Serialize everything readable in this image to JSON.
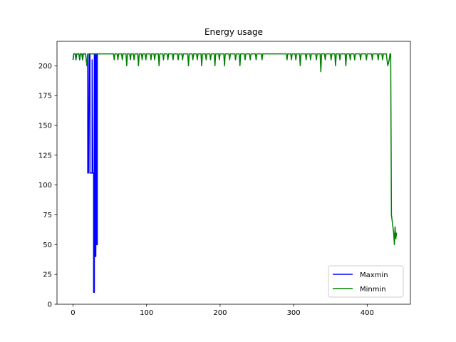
{
  "chart_data": {
    "type": "line",
    "title": "Energy usage",
    "xlabel": "",
    "ylabel": "",
    "xlim": [
      -21.8,
      458.8
    ],
    "ylim": [
      0,
      220.5
    ],
    "xticks": [
      0,
      100,
      200,
      300,
      400
    ],
    "yticks": [
      0,
      25,
      50,
      75,
      100,
      125,
      150,
      175,
      200
    ],
    "grid": false,
    "legend_position": "lower right",
    "series": [
      {
        "name": "Maxmin",
        "color": "#0000ff",
        "points": [
          [
            0,
            205
          ],
          [
            1,
            210
          ],
          [
            3,
            210
          ],
          [
            4,
            205
          ],
          [
            5,
            210
          ],
          [
            8,
            210
          ],
          [
            9,
            205
          ],
          [
            10,
            210
          ],
          [
            12,
            210
          ],
          [
            13,
            205
          ],
          [
            14,
            210
          ],
          [
            17,
            210
          ],
          [
            18,
            205
          ],
          [
            19,
            200
          ],
          [
            20,
            210
          ],
          [
            20,
            110
          ],
          [
            21,
            110
          ],
          [
            22,
            210
          ],
          [
            23,
            210
          ],
          [
            23,
            110
          ],
          [
            24,
            110
          ],
          [
            26,
            110
          ],
          [
            26,
            205
          ],
          [
            27,
            110
          ],
          [
            28,
            110
          ],
          [
            28,
            10
          ],
          [
            29,
            10
          ],
          [
            29,
            210
          ],
          [
            30,
            210
          ],
          [
            30,
            40
          ],
          [
            31,
            40
          ],
          [
            31,
            210
          ],
          [
            32,
            210
          ],
          [
            32,
            50
          ],
          [
            33,
            50
          ],
          [
            33,
            210
          ],
          [
            35,
            210
          ]
        ]
      },
      {
        "name": "Minmin",
        "color": "#008000",
        "points": [
          [
            0,
            205
          ],
          [
            1,
            210
          ],
          [
            3,
            210
          ],
          [
            4,
            205
          ],
          [
            5,
            210
          ],
          [
            8,
            210
          ],
          [
            9,
            205
          ],
          [
            10,
            210
          ],
          [
            12,
            210
          ],
          [
            13,
            205
          ],
          [
            14,
            210
          ],
          [
            17,
            210
          ],
          [
            18,
            205
          ],
          [
            19,
            200
          ],
          [
            20,
            210
          ],
          [
            55,
            210
          ],
          [
            56,
            205
          ],
          [
            57,
            210
          ],
          [
            60,
            210
          ],
          [
            61,
            205
          ],
          [
            62,
            210
          ],
          [
            66,
            210
          ],
          [
            67,
            205
          ],
          [
            68,
            210
          ],
          [
            72,
            210
          ],
          [
            73,
            200
          ],
          [
            74,
            210
          ],
          [
            77,
            210
          ],
          [
            78,
            205
          ],
          [
            79,
            210
          ],
          [
            82,
            210
          ],
          [
            83,
            205
          ],
          [
            84,
            210
          ],
          [
            88,
            210
          ],
          [
            89,
            200
          ],
          [
            90,
            210
          ],
          [
            93,
            210
          ],
          [
            94,
            205
          ],
          [
            95,
            210
          ],
          [
            98,
            210
          ],
          [
            99,
            205
          ],
          [
            100,
            210
          ],
          [
            105,
            210
          ],
          [
            106,
            205
          ],
          [
            107,
            210
          ],
          [
            110,
            210
          ],
          [
            111,
            205
          ],
          [
            112,
            210
          ],
          [
            116,
            210
          ],
          [
            117,
            200
          ],
          [
            118,
            210
          ],
          [
            122,
            210
          ],
          [
            123,
            205
          ],
          [
            124,
            210
          ],
          [
            128,
            210
          ],
          [
            129,
            205
          ],
          [
            130,
            210
          ],
          [
            135,
            210
          ],
          [
            136,
            205
          ],
          [
            137,
            210
          ],
          [
            142,
            210
          ],
          [
            143,
            205
          ],
          [
            144,
            210
          ],
          [
            148,
            210
          ],
          [
            149,
            205
          ],
          [
            150,
            210
          ],
          [
            156,
            210
          ],
          [
            157,
            200
          ],
          [
            158,
            210
          ],
          [
            162,
            210
          ],
          [
            163,
            205
          ],
          [
            164,
            210
          ],
          [
            168,
            210
          ],
          [
            169,
            205
          ],
          [
            170,
            210
          ],
          [
            174,
            210
          ],
          [
            175,
            200
          ],
          [
            176,
            210
          ],
          [
            180,
            210
          ],
          [
            181,
            205
          ],
          [
            182,
            210
          ],
          [
            186,
            210
          ],
          [
            187,
            205
          ],
          [
            188,
            210
          ],
          [
            192,
            210
          ],
          [
            193,
            200
          ],
          [
            194,
            210
          ],
          [
            198,
            210
          ],
          [
            199,
            205
          ],
          [
            200,
            210
          ],
          [
            205,
            210
          ],
          [
            206,
            200
          ],
          [
            207,
            210
          ],
          [
            212,
            210
          ],
          [
            213,
            205
          ],
          [
            214,
            210
          ],
          [
            220,
            210
          ],
          [
            221,
            205
          ],
          [
            222,
            210
          ],
          [
            226,
            210
          ],
          [
            227,
            200
          ],
          [
            228,
            210
          ],
          [
            233,
            210
          ],
          [
            234,
            205
          ],
          [
            235,
            210
          ],
          [
            240,
            210
          ],
          [
            241,
            205
          ],
          [
            242,
            210
          ],
          [
            248,
            210
          ],
          [
            249,
            205
          ],
          [
            250,
            210
          ],
          [
            256,
            210
          ],
          [
            257,
            205
          ],
          [
            258,
            210
          ],
          [
            290,
            210
          ],
          [
            291,
            205
          ],
          [
            292,
            210
          ],
          [
            296,
            210
          ],
          [
            297,
            205
          ],
          [
            298,
            210
          ],
          [
            302,
            210
          ],
          [
            303,
            205
          ],
          [
            304,
            210
          ],
          [
            308,
            210
          ],
          [
            309,
            200
          ],
          [
            310,
            210
          ],
          [
            316,
            210
          ],
          [
            317,
            205
          ],
          [
            318,
            210
          ],
          [
            322,
            210
          ],
          [
            323,
            205
          ],
          [
            324,
            210
          ],
          [
            330,
            210
          ],
          [
            331,
            205
          ],
          [
            332,
            210
          ],
          [
            336,
            210
          ],
          [
            337,
            195
          ],
          [
            338,
            210
          ],
          [
            342,
            210
          ],
          [
            343,
            205
          ],
          [
            344,
            210
          ],
          [
            350,
            210
          ],
          [
            351,
            205
          ],
          [
            352,
            210
          ],
          [
            356,
            210
          ],
          [
            357,
            200
          ],
          [
            358,
            210
          ],
          [
            362,
            210
          ],
          [
            363,
            205
          ],
          [
            364,
            210
          ],
          [
            370,
            210
          ],
          [
            371,
            200
          ],
          [
            372,
            210
          ],
          [
            376,
            210
          ],
          [
            377,
            205
          ],
          [
            378,
            210
          ],
          [
            382,
            210
          ],
          [
            383,
            205
          ],
          [
            384,
            210
          ],
          [
            390,
            210
          ],
          [
            391,
            205
          ],
          [
            392,
            210
          ],
          [
            398,
            210
          ],
          [
            399,
            205
          ],
          [
            400,
            210
          ],
          [
            406,
            210
          ],
          [
            407,
            205
          ],
          [
            408,
            210
          ],
          [
            414,
            210
          ],
          [
            415,
            205
          ],
          [
            416,
            210
          ],
          [
            420,
            210
          ],
          [
            421,
            205
          ],
          [
            422,
            210
          ],
          [
            426,
            210
          ],
          [
            427,
            205
          ],
          [
            428,
            200
          ],
          [
            430,
            205
          ],
          [
            431,
            210
          ],
          [
            432,
            210
          ],
          [
            433,
            75
          ],
          [
            434,
            70
          ],
          [
            435,
            65
          ],
          [
            436,
            60
          ],
          [
            437,
            50
          ],
          [
            438,
            65
          ],
          [
            439,
            55
          ],
          [
            440,
            60
          ]
        ]
      }
    ]
  }
}
